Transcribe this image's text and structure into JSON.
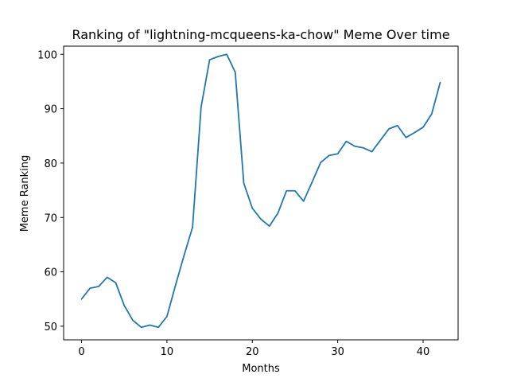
{
  "chart_data": {
    "type": "line",
    "title": "Ranking of \"lightning-mcqueens-ka-chow\" Meme Over time",
    "xlabel": "Months",
    "ylabel": "Meme Ranking",
    "xlim": [
      -2.1,
      44.1
    ],
    "ylim": [
      47.5,
      101.5
    ],
    "xticks": [
      0,
      10,
      20,
      30,
      40
    ],
    "yticks": [
      50,
      60,
      70,
      80,
      90,
      100
    ],
    "grid": false,
    "series": [
      {
        "color": "#1f77b4",
        "x": [
          0,
          1,
          2,
          3,
          4,
          5,
          6,
          7,
          8,
          9,
          10,
          11,
          12,
          13,
          14,
          15,
          16,
          17,
          18,
          19,
          20,
          21,
          22,
          23,
          24,
          25,
          26,
          27,
          28,
          29,
          30,
          31,
          32,
          33,
          34,
          35,
          36,
          37,
          38,
          39,
          40,
          41,
          42
        ],
        "values": [
          55.0,
          57.0,
          57.3,
          59.0,
          58.0,
          53.8,
          51.1,
          49.8,
          50.2,
          49.8,
          51.8,
          57.5,
          63.0,
          68.2,
          90.3,
          99.0,
          99.6,
          100.0,
          96.7,
          76.3,
          71.7,
          69.7,
          68.4,
          70.8,
          74.9,
          74.9,
          73.0,
          76.5,
          80.1,
          81.4,
          81.7,
          84.0,
          83.1,
          82.8,
          82.1,
          84.2,
          86.3,
          86.9,
          84.7,
          85.6,
          86.6,
          89.0,
          94.8
        ]
      }
    ]
  }
}
